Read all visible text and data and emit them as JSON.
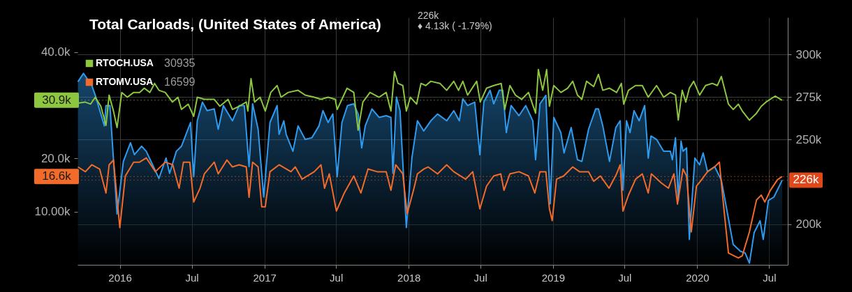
{
  "chart_data": {
    "type": "line",
    "title": "Total Carloads, (United States of America)",
    "subtitle": "226k\n♦ 4.13k ( -1.79%)",
    "xlim": [
      "2015-09-16",
      "2020-08-17"
    ],
    "xticks": [
      {
        "value": "2016-01-01",
        "label": "2016"
      },
      {
        "value": "2016-07-01",
        "label": "Jul"
      },
      {
        "value": "2017-01-01",
        "label": "2017"
      },
      {
        "value": "2017-07-01",
        "label": "Jul"
      },
      {
        "value": "2018-01-01",
        "label": "2018"
      },
      {
        "value": "2018-07-01",
        "label": "Jul"
      },
      {
        "value": "2019-01-01",
        "label": "2019"
      },
      {
        "value": "2019-07-01",
        "label": "Jul"
      },
      {
        "value": "2020-01-01",
        "label": "2020"
      },
      {
        "value": "2020-07-01",
        "label": "Jul"
      }
    ],
    "ylim": [
      0,
      46500
    ],
    "yticks": [
      {
        "value": 10000,
        "label": "10.00k"
      },
      {
        "value": 20000,
        "label": "20.0k"
      },
      {
        "value": 40000,
        "label": "40.0k"
      }
    ],
    "y2lim": [
      176000,
      322000
    ],
    "y2ticks": [
      {
        "value": 200000,
        "label": "200k"
      },
      {
        "value": 250000,
        "label": "250k"
      },
      {
        "value": 275000,
        "label": "275k"
      },
      {
        "value": 300000,
        "label": "300k"
      }
    ],
    "grid": true,
    "legend": "top left",
    "annotations": [
      "30935",
      "16599"
    ],
    "ref_lines": [
      {
        "axis": "y2",
        "value": 226000,
        "label": "226k",
        "color": "#e0481c",
        "line_style": "dotted"
      },
      {
        "axis": "y",
        "value": 30935,
        "label": "30.9k",
        "color": "#8dc63f",
        "line_style": "dotted"
      },
      {
        "axis": "y",
        "value": 16599,
        "label": "16.6k",
        "color": "#f26b2a",
        "line_style": "dotted"
      }
    ],
    "series": [
      {
        "type": "area",
        "axis": "y2",
        "color": "#2f9bef",
        "x": [
          "2015-09-17",
          "2015-10-01",
          "2015-10-22",
          "2015-10-31",
          "2015-11-23",
          "2015-11-27",
          "2015-12-07",
          "2015-12-25",
          "2016-01-10",
          "2016-01-28",
          "2016-02-07",
          "2016-02-25",
          "2016-03-08",
          "2016-03-26",
          "2016-04-09",
          "2016-04-27",
          "2016-05-06",
          "2016-05-23",
          "2016-06-05",
          "2016-06-28",
          "2016-07-06",
          "2016-07-15",
          "2016-07-28",
          "2016-08-09",
          "2016-08-27",
          "2016-09-06",
          "2016-09-19",
          "2016-10-12",
          "2016-10-29",
          "2016-11-11",
          "2016-11-23",
          "2016-12-02",
          "2016-12-16",
          "2016-12-30",
          "2017-01-15",
          "2017-02-02",
          "2017-02-07",
          "2017-02-19",
          "2017-02-25",
          "2017-03-14",
          "2017-03-27",
          "2017-04-14",
          "2017-05-01",
          "2017-05-19",
          "2017-05-29",
          "2017-06-11",
          "2017-06-23",
          "2017-07-04",
          "2017-07-16",
          "2017-07-30",
          "2017-08-15",
          "2017-08-26",
          "2017-09-04",
          "2017-09-13",
          "2017-09-30",
          "2017-10-18",
          "2017-11-05",
          "2017-11-17",
          "2017-11-22",
          "2017-12-01",
          "2017-12-10",
          "2017-12-26",
          "2018-01-09",
          "2018-01-23",
          "2018-02-08",
          "2018-02-26",
          "2018-03-15",
          "2018-04-07",
          "2018-04-25",
          "2018-05-09",
          "2018-05-18",
          "2018-05-30",
          "2018-06-17",
          "2018-06-30",
          "2018-07-10",
          "2018-07-26",
          "2018-08-04",
          "2018-08-18",
          "2018-08-27",
          "2018-09-05",
          "2018-09-17",
          "2018-10-07",
          "2018-10-24",
          "2018-11-11",
          "2018-11-18",
          "2018-11-29",
          "2018-12-14",
          "2018-12-25",
          "2019-01-03",
          "2019-01-21",
          "2019-01-29",
          "2019-02-16",
          "2019-03-04",
          "2019-03-15",
          "2019-04-01",
          "2019-04-19",
          "2019-04-26",
          "2019-05-07",
          "2019-05-24",
          "2019-06-09",
          "2019-06-20",
          "2019-06-27",
          "2019-07-06",
          "2019-07-15",
          "2019-07-25",
          "2019-08-07",
          "2019-08-21",
          "2019-08-30",
          "2019-09-06",
          "2019-09-20",
          "2019-10-08",
          "2019-10-25",
          "2019-10-30",
          "2019-11-07",
          "2019-11-14",
          "2019-11-21",
          "2019-11-26",
          "2019-12-05",
          "2019-12-12",
          "2019-12-26",
          "2020-01-07",
          "2020-01-16",
          "2020-01-27",
          "2020-02-14",
          "2020-03-02",
          "2020-04-01",
          "2020-04-19",
          "2020-05-01",
          "2020-05-12",
          "2020-05-24",
          "2020-06-08",
          "2020-06-16",
          "2020-06-29",
          "2020-07-13",
          "2020-08-03"
        ],
        "values": [
          284000,
          289000,
          282000,
          276000,
          258000,
          270000,
          270000,
          206000,
          237000,
          248000,
          241000,
          246000,
          243000,
          234000,
          227000,
          239000,
          230000,
          243000,
          246000,
          260000,
          228000,
          261000,
          272000,
          267000,
          268000,
          256000,
          270000,
          261000,
          270000,
          270000,
          234000,
          271000,
          256000,
          216000,
          260000,
          270000,
          253000,
          261000,
          253000,
          243000,
          258000,
          250000,
          251000,
          258000,
          267000,
          260000,
          265000,
          228000,
          260000,
          270000,
          271000,
          265000,
          245000,
          258000,
          268000,
          263000,
          264000,
          263000,
          230000,
          275000,
          267000,
          198000,
          239000,
          261000,
          255000,
          261000,
          265000,
          261000,
          267000,
          261000,
          274000,
          270000,
          272000,
          241000,
          272000,
          279000,
          271000,
          279000,
          279000,
          254000,
          270000,
          264000,
          270000,
          261000,
          238000,
          271000,
          276000,
          212000,
          263000,
          254000,
          242000,
          257000,
          238000,
          237000,
          256000,
          268000,
          268000,
          258000,
          237000,
          257000,
          261000,
          220000,
          261000,
          254000,
          267000,
          261000,
          270000,
          239000,
          252000,
          250000,
          243000,
          243000,
          238000,
          251000,
          214000,
          249000,
          243000,
          245000,
          191000,
          239000,
          235000,
          242000,
          231000,
          234000,
          226000,
          188000,
          184000,
          183000,
          177000,
          195000,
          202000,
          191000,
          214000,
          216000,
          226000
        ]
      },
      {
        "name": "RTOCH.USA",
        "axis": "y",
        "color": "#8dc63f",
        "x": [
          "2015-09-17",
          "2015-10-05",
          "2015-10-19",
          "2015-10-31",
          "2015-11-14",
          "2015-11-27",
          "2015-12-05",
          "2015-12-16",
          "2015-12-25",
          "2016-01-06",
          "2016-01-20",
          "2016-02-05",
          "2016-02-20",
          "2016-03-03",
          "2016-03-17",
          "2016-03-29",
          "2016-04-09",
          "2016-04-25",
          "2016-05-13",
          "2016-05-27",
          "2016-06-05",
          "2016-06-22",
          "2016-07-06",
          "2016-07-15",
          "2016-08-02",
          "2016-08-27",
          "2016-09-10",
          "2016-10-01",
          "2016-10-12",
          "2016-10-29",
          "2016-11-16",
          "2016-11-20",
          "2016-11-28",
          "2016-12-07",
          "2016-12-21",
          "2017-01-03",
          "2017-01-17",
          "2017-02-02",
          "2017-02-12",
          "2017-03-02",
          "2017-03-27",
          "2017-04-14",
          "2017-05-07",
          "2017-05-24",
          "2017-06-11",
          "2017-06-29",
          "2017-07-04",
          "2017-07-29",
          "2017-08-15",
          "2017-08-26",
          "2017-09-07",
          "2017-09-25",
          "2017-10-18",
          "2017-11-05",
          "2017-11-17",
          "2017-11-26",
          "2017-12-05",
          "2017-12-17",
          "2017-12-26",
          "2018-01-05",
          "2018-01-21",
          "2018-02-01",
          "2018-02-13",
          "2018-02-26",
          "2018-03-21",
          "2018-04-07",
          "2018-04-25",
          "2018-05-07",
          "2018-05-18",
          "2018-05-30",
          "2018-06-22",
          "2018-07-01",
          "2018-07-17",
          "2018-08-04",
          "2018-08-23",
          "2018-09-01",
          "2018-09-14",
          "2018-09-28",
          "2018-10-14",
          "2018-10-31",
          "2018-11-18",
          "2018-11-25",
          "2018-12-06",
          "2018-12-16",
          "2018-12-23",
          "2019-01-03",
          "2019-01-21",
          "2019-02-07",
          "2019-02-20",
          "2019-03-04",
          "2019-03-15",
          "2019-03-27",
          "2019-04-14",
          "2019-04-26",
          "2019-05-07",
          "2019-05-24",
          "2019-06-11",
          "2019-06-23",
          "2019-06-29",
          "2019-07-11",
          "2019-07-29",
          "2019-08-15",
          "2019-08-30",
          "2019-09-20",
          "2019-10-08",
          "2019-10-25",
          "2019-11-07",
          "2019-11-14",
          "2019-11-24",
          "2019-12-03",
          "2019-12-12",
          "2019-12-23",
          "2020-01-07",
          "2020-01-22",
          "2020-02-08",
          "2020-02-21",
          "2020-03-02",
          "2020-03-20",
          "2020-04-01",
          "2020-04-14",
          "2020-04-24",
          "2020-05-12",
          "2020-05-30",
          "2020-06-11",
          "2020-06-23",
          "2020-07-16",
          "2020-08-03"
        ],
        "values": [
          30400,
          30600,
          30200,
          31500,
          29800,
          26200,
          31900,
          28900,
          25800,
          32400,
          31500,
          32400,
          32400,
          33200,
          32400,
          34100,
          32800,
          32400,
          30600,
          31500,
          29200,
          30200,
          27900,
          31500,
          31100,
          31100,
          29800,
          31100,
          29200,
          29800,
          30600,
          28900,
          35000,
          30600,
          31500,
          28900,
          32400,
          33700,
          31500,
          32400,
          32800,
          31900,
          31500,
          31100,
          31500,
          31100,
          29200,
          33200,
          32400,
          25300,
          30600,
          32400,
          31500,
          32400,
          28900,
          36300,
          34100,
          33700,
          28900,
          31500,
          30200,
          34100,
          33700,
          34500,
          34100,
          32800,
          34500,
          32800,
          34500,
          31900,
          34500,
          30600,
          33200,
          33700,
          34100,
          29200,
          33700,
          31900,
          31100,
          32400,
          28500,
          36700,
          32800,
          36700,
          29800,
          33700,
          32400,
          33200,
          34500,
          31900,
          31100,
          34500,
          33500,
          35800,
          32800,
          33200,
          32400,
          34100,
          30200,
          32800,
          33700,
          33700,
          31500,
          33700,
          31500,
          32400,
          31900,
          27200,
          32800,
          30600,
          33200,
          34500,
          31900,
          33700,
          34100,
          33700,
          35400,
          30200,
          29200,
          30200,
          28900,
          27200,
          28500,
          29800,
          30600,
          31700,
          30935
        ]
      },
      {
        "name": "RTOMV.USA",
        "axis": "y",
        "color": "#f26b2a",
        "x": [
          "2015-09-17",
          "2015-10-06",
          "2015-10-22",
          "2015-11-11",
          "2015-11-27",
          "2015-12-05",
          "2015-12-16",
          "2016-01-01",
          "2016-01-15",
          "2016-02-05",
          "2016-02-20",
          "2016-03-08",
          "2016-03-31",
          "2016-04-25",
          "2016-05-14",
          "2016-05-30",
          "2016-06-10",
          "2016-06-26",
          "2016-07-06",
          "2016-07-22",
          "2016-08-02",
          "2016-08-27",
          "2016-09-06",
          "2016-09-28",
          "2016-10-12",
          "2016-10-29",
          "2016-11-16",
          "2016-11-23",
          "2016-12-02",
          "2016-12-16",
          "2016-12-25",
          "2017-01-03",
          "2017-01-15",
          "2017-02-07",
          "2017-03-09",
          "2017-03-20",
          "2017-04-06",
          "2017-05-07",
          "2017-05-24",
          "2017-06-02",
          "2017-06-14",
          "2017-07-02",
          "2017-07-22",
          "2017-08-15",
          "2017-09-02",
          "2017-09-20",
          "2017-10-13",
          "2017-11-05",
          "2017-11-17",
          "2017-11-29",
          "2017-12-17",
          "2017-12-28",
          "2018-01-13",
          "2018-01-23",
          "2018-02-08",
          "2018-02-19",
          "2018-03-15",
          "2018-04-07",
          "2018-04-25",
          "2018-05-25",
          "2018-06-12",
          "2018-06-30",
          "2018-07-17",
          "2018-08-04",
          "2018-08-22",
          "2018-08-30",
          "2018-09-14",
          "2018-10-07",
          "2018-10-31",
          "2018-11-16",
          "2018-11-29",
          "2018-12-14",
          "2018-12-23",
          "2018-12-30",
          "2019-01-10",
          "2019-01-28",
          "2019-02-20",
          "2019-03-09",
          "2019-04-01",
          "2019-04-14",
          "2019-05-01",
          "2019-05-23",
          "2019-06-11",
          "2019-06-20",
          "2019-06-27",
          "2019-07-11",
          "2019-07-29",
          "2019-08-15",
          "2019-08-30",
          "2019-09-07",
          "2019-10-02",
          "2019-10-20",
          "2019-11-03",
          "2019-11-12",
          "2019-11-26",
          "2019-12-05",
          "2019-12-17",
          "2019-12-30",
          "2020-01-09",
          "2020-01-27",
          "2020-02-14",
          "2020-02-26",
          "2020-03-09",
          "2020-03-20",
          "2020-04-14",
          "2020-04-24",
          "2020-05-12",
          "2020-05-30",
          "2020-06-11",
          "2020-06-20",
          "2020-07-04",
          "2020-07-22",
          "2020-08-03"
        ],
        "values": [
          18400,
          17500,
          18800,
          18000,
          13500,
          18800,
          19700,
          7000,
          16700,
          19300,
          19300,
          20100,
          17500,
          19300,
          18800,
          14400,
          19300,
          19300,
          11800,
          14400,
          17100,
          19300,
          17100,
          19700,
          18400,
          18800,
          18400,
          12700,
          19300,
          18400,
          10900,
          10900,
          17500,
          18800,
          17500,
          18400,
          16100,
          17500,
          18800,
          14400,
          17100,
          10100,
          13500,
          16700,
          13500,
          18000,
          17500,
          17500,
          14000,
          18800,
          17100,
          9600,
          14000,
          17100,
          18000,
          18400,
          17100,
          18800,
          17500,
          16100,
          17500,
          10500,
          14800,
          16700,
          17100,
          14000,
          17100,
          17500,
          16700,
          13500,
          17500,
          17500,
          10500,
          8300,
          16100,
          16700,
          18400,
          17500,
          17500,
          15700,
          16700,
          14400,
          17100,
          18800,
          10100,
          13100,
          16100,
          17100,
          13500,
          17100,
          15400,
          14400,
          17100,
          11400,
          18000,
          16700,
          6200,
          14800,
          15700,
          17500,
          18400,
          19300,
          10100,
          2200,
          1300,
          1700,
          6200,
          12200,
          13100,
          11800,
          14000,
          16000,
          16599
        ]
      }
    ]
  }
}
